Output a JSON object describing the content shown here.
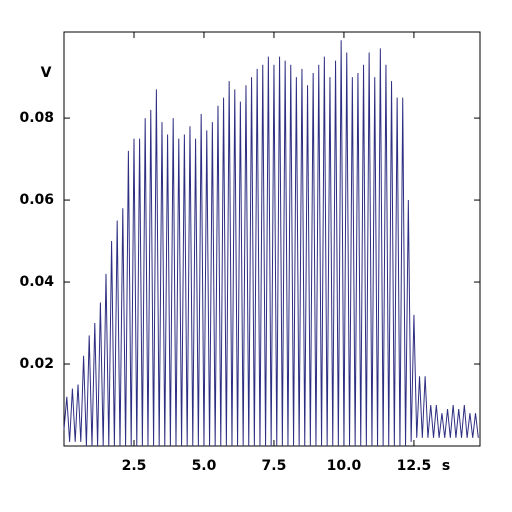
{
  "chart_data": {
    "type": "line",
    "x_label": "s",
    "y_label": "V",
    "x": [
      0,
      0.1,
      0.2,
      0.3,
      0.4,
      0.5,
      0.6,
      0.7,
      0.8,
      0.9,
      1.0,
      1.1,
      1.2,
      1.3,
      1.4,
      1.5,
      1.6,
      1.7,
      1.8,
      1.9,
      2.0,
      2.1,
      2.2,
      2.3,
      2.4,
      2.5,
      2.6,
      2.7,
      2.8,
      2.9,
      3.0,
      3.1,
      3.2,
      3.3,
      3.4,
      3.5,
      3.6,
      3.7,
      3.8,
      3.9,
      4.0,
      4.1,
      4.2,
      4.3,
      4.4,
      4.5,
      4.6,
      4.7,
      4.8,
      4.9,
      5.0,
      5.1,
      5.2,
      5.3,
      5.4,
      5.5,
      5.6,
      5.7,
      5.8,
      5.9,
      6.0,
      6.1,
      6.2,
      6.3,
      6.4,
      6.5,
      6.6,
      6.7,
      6.8,
      6.9,
      7.0,
      7.1,
      7.2,
      7.3,
      7.4,
      7.5,
      7.6,
      7.7,
      7.8,
      7.9,
      8.0,
      8.1,
      8.2,
      8.3,
      8.4,
      8.5,
      8.6,
      8.7,
      8.8,
      8.9,
      9.0,
      9.1,
      9.2,
      9.3,
      9.4,
      9.5,
      9.6,
      9.7,
      9.8,
      9.9,
      10.0,
      10.1,
      10.2,
      10.3,
      10.4,
      10.5,
      10.6,
      10.7,
      10.8,
      10.9,
      11.0,
      11.1,
      11.2,
      11.3,
      11.4,
      11.5,
      11.6,
      11.7,
      11.8,
      11.9,
      12.0,
      12.1,
      12.2,
      12.3,
      12.4,
      12.5,
      12.6,
      12.7,
      12.8,
      12.9,
      13.0,
      13.1,
      13.2,
      13.3,
      13.4,
      13.5,
      13.6,
      13.7,
      13.8,
      13.9,
      14.0,
      14.1,
      14.2,
      14.3,
      14.4,
      14.5,
      14.6,
      14.7,
      14.8
    ],
    "series": [
      {
        "color": "#2e2e82",
        "values": [
          0.004,
          0.012,
          0.001,
          0.014,
          0.001,
          0.015,
          0.001,
          0.022,
          0,
          0.027,
          0,
          0.03,
          0,
          0.035,
          0,
          0.042,
          0,
          0.05,
          0,
          0.055,
          0,
          0.058,
          0,
          0.072,
          0,
          0.075,
          0,
          0.075,
          0,
          0.08,
          0,
          0.082,
          0,
          0.087,
          0,
          0.079,
          0,
          0.076,
          0,
          0.08,
          0,
          0.075,
          0,
          0.076,
          0,
          0.078,
          0,
          0.075,
          0,
          0.081,
          0,
          0.077,
          0,
          0.079,
          0,
          0.083,
          0,
          0.085,
          0,
          0.089,
          0,
          0.087,
          0,
          0.084,
          0,
          0.088,
          0,
          0.09,
          0,
          0.092,
          0,
          0.093,
          0,
          0.095,
          0,
          0.093,
          0,
          0.095,
          0,
          0.094,
          0,
          0.093,
          0,
          0.09,
          0,
          0.092,
          0,
          0.088,
          0,
          0.091,
          0,
          0.093,
          0,
          0.095,
          0,
          0.09,
          0,
          0.094,
          0,
          0.099,
          0,
          0.096,
          0,
          0.09,
          0,
          0.091,
          0,
          0.093,
          0,
          0.096,
          0,
          0.09,
          0,
          0.097,
          0,
          0.093,
          0,
          0.089,
          0,
          0.085,
          0,
          0.085,
          0,
          0.06,
          0.001,
          0.032,
          0.002,
          0.017,
          0.002,
          0.017,
          0.002,
          0.01,
          0.002,
          0.01,
          0.002,
          0.008,
          0.002,
          0.009,
          0.002,
          0.01,
          0.002,
          0.009,
          0.002,
          0.01,
          0.002,
          0.008,
          0.002,
          0.008,
          0.002
        ]
      }
    ],
    "xlim": [
      0,
      14.86
    ],
    "ylim": [
      0,
      0.101
    ],
    "xticks": [
      2.5,
      {
        "value": 5,
        "label": "5.0"
      },
      7.5,
      {
        "value": 10,
        "label": "10.0"
      },
      12.5
    ],
    "yticks": [
      0.02,
      0.04,
      0.06,
      0.08
    ]
  }
}
